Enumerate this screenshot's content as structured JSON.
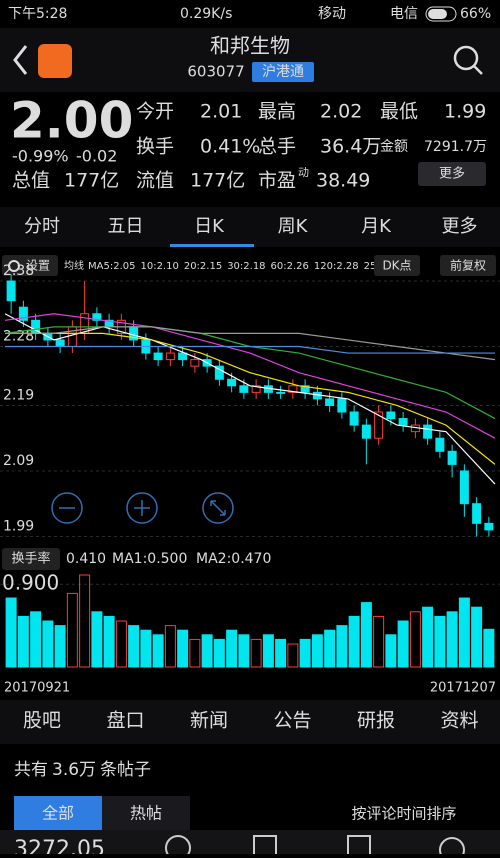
{
  "status_bar": {
    "time": "下午5:28",
    "speed": "0.29K/s",
    "carrier1": "移动",
    "carrier2": "电信",
    "battery": "66%"
  },
  "header": {
    "name": "和邦生物",
    "code": "603077",
    "tag": "沪港通"
  },
  "quote": {
    "price": "2.00",
    "change_pct": "-0.99%",
    "change": "-0.02",
    "fields": [
      {
        "label": "今开",
        "value": "2.01"
      },
      {
        "label": "最高",
        "value": "2.02"
      },
      {
        "label": "最低",
        "value": "1.99"
      },
      {
        "label": "换手",
        "value": "0.41%"
      },
      {
        "label": "总手",
        "value": "36.4万"
      },
      {
        "label": "金额",
        "value": "7291.7万"
      },
      {
        "label": "总值",
        "value": "177亿"
      },
      {
        "label": "流值",
        "value": "177亿"
      },
      {
        "label": "市盈",
        "sup": "动",
        "value": "38.49"
      }
    ],
    "more": "更多"
  },
  "tabs": [
    "分时",
    "五日",
    "日K",
    "周K",
    "月K",
    "更多"
  ],
  "kline_bar": {
    "settings": "设置",
    "ma_label": "均线",
    "ma": [
      "MA5:2.05",
      "10:2.10",
      "20:2.15",
      "30:2.18",
      "60:2.26",
      "120:2.28",
      "250:2.2"
    ],
    "dk": "DK点",
    "adjust": "前复权"
  },
  "chart_data": {
    "type": "candlestick",
    "ylim": [
      1.98,
      2.38
    ],
    "yticks": [
      2.38,
      2.28,
      2.19,
      2.09,
      1.99
    ],
    "open": [
      2.38,
      2.34,
      2.32,
      2.3,
      2.29,
      2.28,
      2.3,
      2.33,
      2.32,
      2.3,
      2.31,
      2.29,
      2.27,
      2.26,
      2.27,
      2.25,
      2.26,
      2.25,
      2.23,
      2.22,
      2.21,
      2.22,
      2.21,
      2.21,
      2.22,
      2.21,
      2.2,
      2.2,
      2.18,
      2.16,
      2.14,
      2.18,
      2.17,
      2.15,
      2.16,
      2.14,
      2.12,
      2.09,
      2.04,
      2.01
    ],
    "close": [
      2.35,
      2.32,
      2.3,
      2.29,
      2.28,
      2.31,
      2.33,
      2.32,
      2.31,
      2.32,
      2.29,
      2.27,
      2.26,
      2.27,
      2.26,
      2.26,
      2.25,
      2.23,
      2.22,
      2.21,
      2.22,
      2.21,
      2.21,
      2.22,
      2.21,
      2.2,
      2.19,
      2.18,
      2.16,
      2.14,
      2.18,
      2.17,
      2.16,
      2.16,
      2.14,
      2.12,
      2.1,
      2.04,
      2.01,
      2.0
    ],
    "high": [
      2.39,
      2.35,
      2.33,
      2.31,
      2.3,
      2.32,
      2.38,
      2.34,
      2.33,
      2.33,
      2.32,
      2.3,
      2.28,
      2.28,
      2.28,
      2.27,
      2.27,
      2.26,
      2.24,
      2.23,
      2.23,
      2.23,
      2.22,
      2.23,
      2.23,
      2.22,
      2.21,
      2.21,
      2.19,
      2.17,
      2.19,
      2.19,
      2.18,
      2.17,
      2.17,
      2.15,
      2.13,
      2.1,
      2.05,
      2.02
    ],
    "low": [
      2.33,
      2.31,
      2.29,
      2.28,
      2.27,
      2.27,
      2.29,
      2.31,
      2.3,
      2.29,
      2.28,
      2.26,
      2.25,
      2.25,
      2.25,
      2.24,
      2.24,
      2.22,
      2.21,
      2.2,
      2.2,
      2.2,
      2.2,
      2.2,
      2.2,
      2.19,
      2.18,
      2.17,
      2.15,
      2.1,
      2.13,
      2.16,
      2.15,
      2.14,
      2.13,
      2.11,
      2.08,
      2.02,
      1.99,
      1.99
    ],
    "up_color": "#ff3b3b",
    "down_color": "#00e5ee",
    "ma_series": [
      {
        "color": "#ffffff",
        "values": [
          2.33,
          2.29,
          2.31,
          2.29,
          2.26,
          2.22,
          2.21,
          2.2,
          2.16,
          2.15,
          2.07
        ]
      },
      {
        "color": "#f5e400",
        "values": [
          2.3,
          2.3,
          2.3,
          2.29,
          2.27,
          2.24,
          2.22,
          2.21,
          2.19,
          2.16,
          2.1
        ]
      },
      {
        "color": "#e040e0",
        "values": [
          2.32,
          2.33,
          2.32,
          2.31,
          2.29,
          2.27,
          2.24,
          2.22,
          2.2,
          2.18,
          2.14
        ]
      },
      {
        "color": "#30b030",
        "values": [
          2.3,
          2.31,
          2.31,
          2.31,
          2.3,
          2.28,
          2.27,
          2.25,
          2.23,
          2.21,
          2.17
        ]
      },
      {
        "color": "#9a9a9a",
        "values": [
          2.3,
          2.3,
          2.31,
          2.31,
          2.3,
          2.3,
          2.3,
          2.29,
          2.28,
          2.27,
          2.26
        ]
      },
      {
        "color": "#4a90e2",
        "values": [
          2.28,
          2.28,
          2.28,
          2.28,
          2.28,
          2.28,
          2.28,
          2.27,
          2.27,
          2.27,
          2.27
        ]
      }
    ],
    "volume": {
      "label": "换手率",
      "current": "0.410",
      "ma1": "MA1:0.500",
      "ma2": "MA2:0.470",
      "ylim": [
        0,
        1.0
      ],
      "yticks": [
        {
          "value": 0.9,
          "label": "0.900"
        }
      ],
      "values": [
        0.75,
        0.55,
        0.6,
        0.5,
        0.45,
        0.8,
        1.0,
        0.6,
        0.55,
        0.5,
        0.45,
        0.4,
        0.35,
        0.45,
        0.4,
        0.3,
        0.35,
        0.3,
        0.4,
        0.35,
        0.3,
        0.35,
        0.3,
        0.25,
        0.3,
        0.35,
        0.4,
        0.45,
        0.55,
        0.7,
        0.55,
        0.35,
        0.5,
        0.6,
        0.65,
        0.55,
        0.6,
        0.75,
        0.65,
        0.41
      ]
    },
    "x_start": "20170921",
    "x_end": "20171207"
  },
  "bottom_tabs": [
    "股吧",
    "盘口",
    "新闻",
    "公告",
    "研报",
    "资料"
  ],
  "posts": {
    "prefix": "共有",
    "count": "3.6万",
    "suffix": "条帖子",
    "filters": [
      "全部",
      "热帖"
    ],
    "sort": "按评论时间排序"
  },
  "footer": {
    "index": "3272.05"
  }
}
